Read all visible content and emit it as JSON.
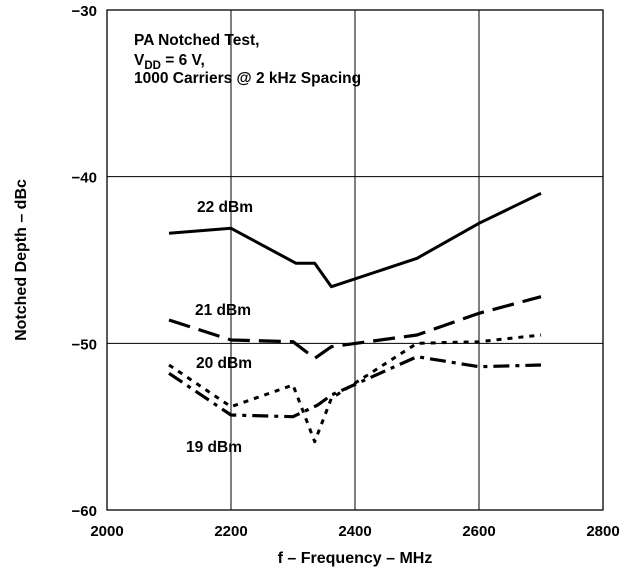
{
  "chart_data": {
    "type": "line",
    "xlabel": "f – Frequency – MHz",
    "ylabel": "Notched Depth – dBc",
    "xlim": [
      2000,
      2800
    ],
    "ylim": [
      -60,
      -30
    ],
    "xticks": [
      2000,
      2200,
      2400,
      2600,
      2800
    ],
    "yticks": [
      -30,
      -40,
      -50,
      -60
    ],
    "grid": true,
    "annotation": {
      "line1": "PA Notched Test,",
      "line2_main": "V",
      "line2_sub": "DD",
      "line2_rest": " = 6 V,",
      "line3": "1000 Carriers @ 2 kHz Spacing"
    },
    "series": [
      {
        "name": "22 dBm",
        "style": "solid",
        "x": [
          2100,
          2200,
          2305,
          2335,
          2362,
          2500,
          2600,
          2700
        ],
        "y": [
          -43.4,
          -43.1,
          -45.2,
          -45.2,
          -46.6,
          -44.9,
          -42.8,
          -41.0
        ]
      },
      {
        "name": "21 dBm",
        "style": "long-dash",
        "x": [
          2100,
          2200,
          2300,
          2335,
          2362,
          2500,
          2600,
          2700
        ],
        "y": [
          -48.6,
          -49.8,
          -49.9,
          -50.9,
          -50.2,
          -49.5,
          -48.2,
          -47.2
        ]
      },
      {
        "name": "20 dBm",
        "style": "dotted",
        "x": [
          2100,
          2200,
          2300,
          2335,
          2362,
          2500,
          2600,
          2700
        ],
        "y": [
          -51.3,
          -53.8,
          -52.5,
          -55.9,
          -53.3,
          -50.0,
          -49.9,
          -49.5
        ]
      },
      {
        "name": "19 dBm",
        "style": "dash-dot",
        "x": [
          2100,
          2200,
          2300,
          2340,
          2362,
          2500,
          2600,
          2700
        ],
        "y": [
          -51.8,
          -54.3,
          -54.4,
          -53.7,
          -53.1,
          -50.8,
          -51.4,
          -51.3
        ]
      }
    ]
  }
}
